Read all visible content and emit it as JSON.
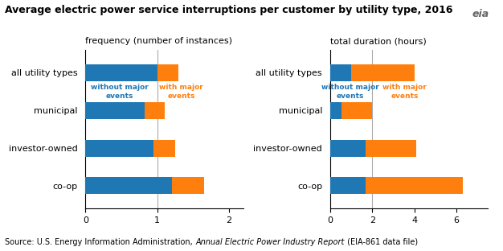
{
  "title": "Average electric power service interruptions per customer by utility type, 2016",
  "logo": "eia",
  "source": [
    "Source: U.S. Energy Information Administration, ",
    "Annual Electric Power Industry Report",
    " (EIA-861 data file)"
  ],
  "chart_data": [
    {
      "type": "bar",
      "orientation": "horizontal",
      "stacked": false,
      "title": "frequency (number of instances)",
      "categories": [
        "all utility types",
        "municipal",
        "investor-owned",
        "co-op"
      ],
      "series": [
        {
          "name": "without major\nevents",
          "values": [
            1.0,
            0.82,
            0.95,
            1.2
          ]
        },
        {
          "name": "with major\nevents",
          "values": [
            1.3,
            1.1,
            1.25,
            1.65
          ]
        }
      ],
      "xlim": [
        0,
        2.2
      ],
      "xticks": [
        0,
        1,
        2
      ],
      "reference_line": 1.0
    },
    {
      "type": "bar",
      "orientation": "horizontal",
      "stacked": false,
      "title": "total duration (hours)",
      "categories": [
        "all utility types",
        "municipal",
        "investor-owned",
        "co-op"
      ],
      "series": [
        {
          "name": "without major\nevents",
          "values": [
            1.0,
            0.55,
            1.7,
            1.7
          ]
        },
        {
          "name": "with major\nevents",
          "values": [
            4.0,
            2.0,
            4.1,
            6.3
          ]
        }
      ],
      "xlim": [
        0,
        7.5
      ],
      "xticks": [
        0,
        2,
        4,
        6
      ],
      "reference_line": 2.0
    }
  ]
}
